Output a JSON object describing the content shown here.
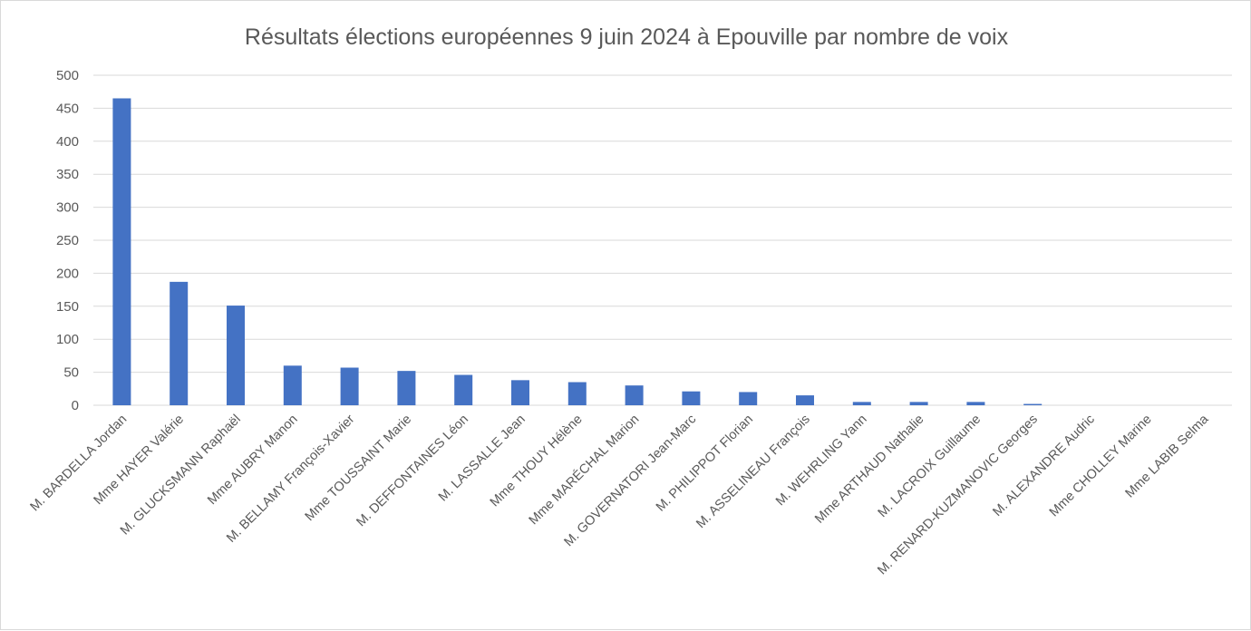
{
  "chart_data": {
    "type": "bar",
    "title": "Résultats élections européennes  9 juin 2024 à Epouville par nombre de voix",
    "xlabel": "",
    "ylabel": "",
    "ylim": [
      0,
      500
    ],
    "yticks": [
      0,
      50,
      100,
      150,
      200,
      250,
      300,
      350,
      400,
      450,
      500
    ],
    "grid": true,
    "legend": "none",
    "bar_color": "#4472c4",
    "categories": [
      "M. BARDELLA Jordan",
      "Mme HAYER Valérie",
      "M. GLUCKSMANN Raphaël",
      "Mme AUBRY Manon",
      "M. BELLAMY François-Xavier",
      "Mme TOUSSAINT Marie",
      "M. DEFFONTAINES Léon",
      "M. LASSALLE Jean",
      "Mme THOUY Hélène",
      "Mme MARÉCHAL Marion",
      "M. GOVERNATORI Jean-Marc",
      "M. PHILIPPOT Florian",
      "M. ASSELINEAU François",
      "M. WEHRLING Yann",
      "Mme ARTHAUD Nathalie",
      "M. LACROIX Guillaume",
      "M. RENARD-KUZMANOVIC Georges",
      "M. ALEXANDRE Audric",
      "Mme CHOLLEY Marine",
      "Mme LABIB Selma"
    ],
    "values": [
      465,
      187,
      151,
      60,
      57,
      52,
      46,
      38,
      35,
      30,
      21,
      20,
      15,
      5,
      5,
      5,
      2,
      0,
      0,
      0
    ]
  }
}
